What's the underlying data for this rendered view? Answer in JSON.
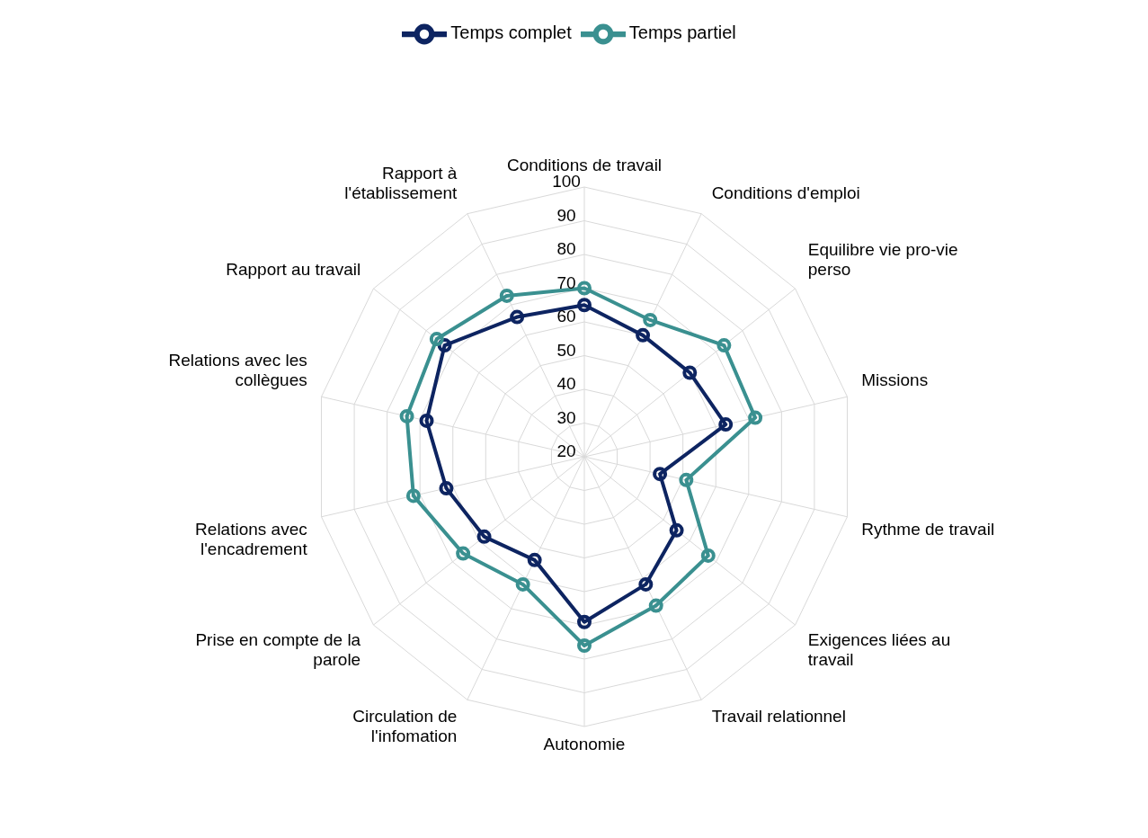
{
  "chart_data": {
    "type": "radar",
    "categories": [
      "Conditions de travail",
      "Conditions d'emploi",
      "Equilibre vie pro-vie perso",
      "Missions",
      "Rythme de travail",
      "Exigences liées au travail",
      "Travail relationnel",
      "Autonomie",
      "Circulation de l'infomation",
      "Prise en compte de la parole",
      "Relations avec l'encadrement",
      "Relations avec les collègues",
      "Rapport au travail",
      "Rapport à l'établissement"
    ],
    "series": [
      {
        "name": "Temps complet",
        "color": "#0d2461",
        "values": [
          65,
          60,
          60,
          63,
          43,
          55,
          62,
          69,
          54,
          58,
          62,
          68,
          73,
          66
        ]
      },
      {
        "name": "Temps partiel",
        "color": "#3a9090",
        "values": [
          70,
          65,
          73,
          72,
          51,
          67,
          69,
          76,
          62,
          66,
          72,
          74,
          76,
          73
        ]
      }
    ],
    "ylim": [
      20,
      100
    ],
    "yticks": [
      20,
      30,
      40,
      50,
      60,
      70,
      80,
      90,
      100
    ],
    "grid": true,
    "legend": "top",
    "marker": "circle",
    "line_style": "solid"
  }
}
